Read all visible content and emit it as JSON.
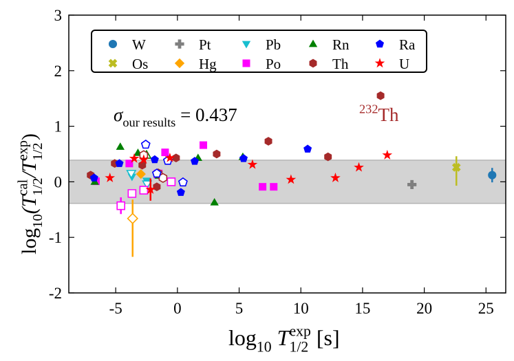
{
  "chart_data": {
    "type": "scatter",
    "xlabel": [
      {
        "text": "log"
      },
      {
        "text": "10",
        "shift": "sub"
      },
      {
        "text": " T",
        "style": "italic"
      },
      {
        "text": "exp",
        "shift": "sup"
      },
      {
        "text": "1/2",
        "shift": "stack"
      },
      {
        "text": " [s]"
      }
    ],
    "ylabel": [
      {
        "text": "log"
      },
      {
        "text": "10",
        "shift": "sub"
      },
      {
        "text": "(T",
        "style": "italic"
      },
      {
        "text": "cal",
        "shift": "sup"
      },
      {
        "text": "1/2",
        "shift": "stack"
      },
      {
        "text": "/T",
        "style": "italic"
      },
      {
        "text": "exp",
        "shift": "sup"
      },
      {
        "text": "1/2",
        "shift": "stack"
      },
      {
        "text": ")"
      }
    ],
    "annotations": [
      [
        {
          "text": "σ",
          "style": "italic"
        },
        {
          "text": "our results",
          "shift": "sub"
        },
        {
          "text": " = 0.437"
        }
      ],
      [
        {
          "text": "232",
          "shift": "sup"
        },
        {
          "text": "Th"
        }
      ]
    ],
    "xlim": [
      -8.8,
      26.6
    ],
    "ylim": [
      -2,
      3
    ],
    "xticks": [
      -5,
      0,
      5,
      10,
      15,
      20,
      25
    ],
    "yticks": [
      -2,
      -1,
      0,
      1,
      2,
      3
    ],
    "band": [
      -0.39,
      0.39
    ],
    "legend": "upper left",
    "series": [
      {
        "name": "W",
        "color": "#1f77b4",
        "marker": "circle",
        "x": [
          25.5
        ],
        "values": [
          0.12
        ],
        "open": [
          false
        ],
        "yerr": [
          [
            0.13,
            0.13
          ]
        ]
      },
      {
        "name": "Os",
        "color": "#bcbd22",
        "marker": "x",
        "x": [
          22.6
        ],
        "values": [
          0.26
        ],
        "open": [
          false
        ],
        "yerr": [
          [
            0.33,
            0.2
          ]
        ]
      },
      {
        "name": "Pt",
        "color": "#7f7f7f",
        "marker": "plus",
        "x": [
          19.0
        ],
        "values": [
          -0.05
        ],
        "open": [
          false
        ]
      },
      {
        "name": "Hg",
        "color": "#ffa500",
        "marker": "diamond",
        "x": [
          -2.96,
          -3.63
        ],
        "values": [
          0.14,
          -0.66
        ],
        "open": [
          false,
          true
        ],
        "yerr": [
          null,
          [
            0.69,
            0.34
          ]
        ]
      },
      {
        "name": "Pb",
        "color": "#17becf",
        "marker": "triangle-down",
        "x": [
          -3.68,
          -2.5,
          -3.74,
          -2.46
        ],
        "values": [
          0.09,
          0.02,
          0.15,
          -0.04
        ],
        "open": [
          false,
          false,
          true,
          true
        ]
      },
      {
        "name": "Po",
        "color": "#ff00ff",
        "marker": "square",
        "x": [
          -6.6,
          -3.9,
          -1.0,
          2.1,
          6.9,
          7.8,
          -4.58,
          -3.68,
          -2.73,
          -0.5,
          -1.56
        ],
        "values": [
          0.01,
          0.33,
          0.53,
          0.66,
          -0.09,
          -0.09,
          -0.43,
          -0.21,
          -0.15,
          0.0,
          0.14
        ],
        "open": [
          false,
          false,
          false,
          false,
          false,
          false,
          true,
          true,
          true,
          true,
          true
        ],
        "yerr": [
          null,
          null,
          null,
          null,
          null,
          null,
          [
            0.15,
            0.15
          ],
          null,
          null,
          null,
          null
        ]
      },
      {
        "name": "Rn",
        "color": "#008000",
        "marker": "triangle-up",
        "x": [
          -4.63,
          -6.7,
          -3.2,
          -1.5,
          1.67,
          3.0,
          5.3,
          -2.5
        ],
        "values": [
          0.63,
          0.0,
          0.52,
          0.11,
          0.43,
          -0.37,
          0.45,
          0.48
        ],
        "open": [
          false,
          false,
          false,
          false,
          false,
          false,
          false,
          true
        ]
      },
      {
        "name": "Th",
        "color": "#a52a2a",
        "marker": "hexagon",
        "x": [
          -7.03,
          -5.08,
          -2.85,
          -1.67,
          -0.11,
          3.18,
          7.37,
          12.2,
          16.46,
          -2.73,
          -1.56,
          -1.17
        ],
        "values": [
          0.12,
          0.33,
          0.3,
          -0.09,
          0.43,
          0.5,
          0.73,
          0.45,
          1.55,
          0.48,
          0.15,
          0.07
        ],
        "open": [
          false,
          false,
          false,
          false,
          false,
          false,
          false,
          false,
          false,
          true,
          true,
          true
        ]
      },
      {
        "name": "Ra",
        "color": "#0000ff",
        "marker": "pentagon",
        "x": [
          -6.75,
          -4.7,
          -1.84,
          0.28,
          1.4,
          5.36,
          10.55,
          -2.57,
          -0.78,
          0.45,
          -1.67
        ],
        "values": [
          0.07,
          0.33,
          0.4,
          -0.19,
          0.37,
          0.42,
          0.59,
          0.67,
          0.38,
          -0.01,
          0.15
        ],
        "open": [
          false,
          false,
          false,
          false,
          false,
          false,
          false,
          true,
          true,
          true,
          true
        ]
      },
      {
        "name": "U",
        "color": "#ff0000",
        "marker": "star",
        "x": [
          -5.47,
          -2.73,
          -2.18,
          -0.61,
          6.08,
          9.2,
          12.8,
          14.7,
          17.0,
          -3.5
        ],
        "values": [
          0.07,
          0.4,
          -0.14,
          0.43,
          0.31,
          0.04,
          0.07,
          0.26,
          0.48,
          0.42
        ],
        "open": [
          false,
          false,
          false,
          false,
          false,
          false,
          false,
          false,
          false,
          false
        ],
        "yerr": [
          null,
          null,
          [
            0.2,
            0.2
          ],
          null,
          null,
          null,
          null,
          null,
          null,
          null
        ]
      }
    ]
  }
}
